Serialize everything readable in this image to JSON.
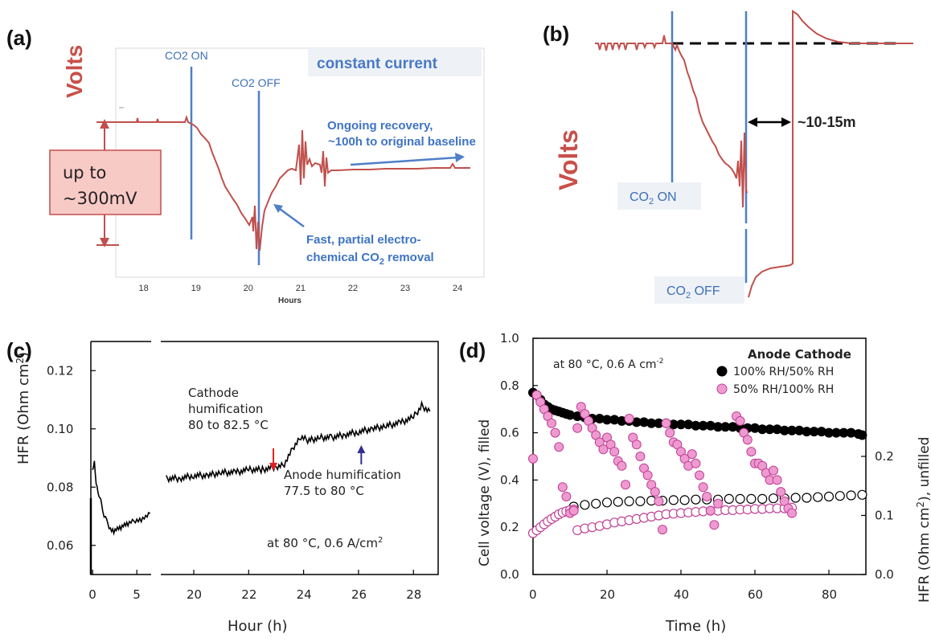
{
  "chart_data": [
    {
      "panel": "(a)",
      "type": "line",
      "annotations": {
        "co2_on": "CO2 ON",
        "co2_off": "CO2 OFF",
        "box_title": "constant current",
        "recovery_note_1": "Ongoing recovery,",
        "recovery_note_2": "~100h to original baseline",
        "removal_note_1": "Fast, partial electro-",
        "removal_note_2": "chemical CO",
        "removal_note_sub": "2",
        "removal_note_3": " removal",
        "drop_1": "up to",
        "drop_2": "~300mV"
      },
      "ylabel": "Volts",
      "xlabel": "Hours",
      "xlim": [
        17.5,
        24.2
      ],
      "x_ticks": [
        "18",
        "19",
        "20",
        "21",
        "22",
        "23",
        "24"
      ],
      "events": {
        "co2_on_hour": 19.3,
        "co2_off_hour": 20.4
      },
      "color": "#c0504d"
    },
    {
      "panel": "(b)",
      "type": "line",
      "ylabel": "Volts",
      "annotations": {
        "co2_on": "CO",
        "co2_on_sub": "2",
        "co2_on_rest": " ON",
        "co2_off": "CO",
        "co2_off_sub": "2",
        "co2_off_rest": " OFF",
        "interval": "~10-15m"
      },
      "color": "#c0504d"
    },
    {
      "panel": "(c)",
      "type": "line",
      "ylabel": "HFR (Ohm cm",
      "ylabel_sup": "2",
      "ylabel_end": ")",
      "xlabel": "Hour (h)",
      "ylim": [
        0.05,
        0.13
      ],
      "y_ticks": [
        "0.06",
        "0.08",
        "0.10",
        "0.12"
      ],
      "x_ticks_left": [
        "0",
        "5"
      ],
      "x_ticks_right": [
        "20",
        "22",
        "24",
        "26",
        "28"
      ],
      "xlim_left": [
        -0.2,
        6.8
      ],
      "xlim_right": [
        18.8,
        28.9
      ],
      "annotations": {
        "cathode_1": "Cathode",
        "cathode_2": "humification",
        "cathode_3": "80 to 82.5 °C",
        "anode_1": "Anode humification",
        "anode_2": "77.5 to 80 °C",
        "conditions": "at 80 °C, 0.6 A/cm",
        "conditions_sup": "2"
      },
      "arrows": {
        "cathode_hour": 22.9,
        "anode_hour": 26.1
      },
      "series": [
        {
          "x": [
            0.0,
            0.2,
            0.4,
            0.6,
            0.8,
            1.0,
            1.3,
            1.6,
            2.0,
            2.4,
            2.8,
            3.2,
            3.6,
            4.0,
            4.5,
            5.0,
            5.5,
            6.0,
            6.5
          ],
          "y": [
            0.085,
            0.089,
            0.082,
            0.078,
            0.077,
            0.074,
            0.07,
            0.068,
            0.066,
            0.065,
            0.066,
            0.066,
            0.067,
            0.067,
            0.068,
            0.069,
            0.069,
            0.07,
            0.071
          ]
        },
        {
          "x": [
            19.0,
            19.5,
            20.0,
            20.5,
            21.0,
            21.5,
            22.0,
            22.5,
            23.0,
            23.3,
            23.6,
            23.9,
            24.2,
            24.6,
            25.0,
            25.5,
            26.0,
            26.5,
            27.0,
            27.5,
            28.0,
            28.3,
            28.6
          ],
          "y": [
            0.083,
            0.083,
            0.084,
            0.084,
            0.085,
            0.085,
            0.086,
            0.086,
            0.087,
            0.088,
            0.093,
            0.097,
            0.096,
            0.097,
            0.097,
            0.098,
            0.099,
            0.1,
            0.101,
            0.102,
            0.104,
            0.108,
            0.106
          ]
        }
      ]
    },
    {
      "panel": "(d)",
      "type": "scatter",
      "ylabel": "Cell voltage (V), filled",
      "xlabel": "Time (h)",
      "y2label": "HFR (Ohm cm",
      "y2label_sup": "2",
      "y2label_end": "), unfilled",
      "xlim": [
        0,
        90
      ],
      "ylim": [
        0,
        1.0
      ],
      "y2lim": [
        0,
        0.4
      ],
      "x_ticks": [
        "0",
        "20",
        "40",
        "60",
        "80"
      ],
      "y_ticks": [
        "0.0",
        "0.2",
        "0.4",
        "0.6",
        "0.8",
        "1.0"
      ],
      "y2_ticks": [
        "0.0",
        "0.1",
        "0.2"
      ],
      "annotations": {
        "conditions": "at 80 °C, 0.6 A cm",
        "conditions_sup": "-2"
      },
      "legend_title": "Anode  Cathode",
      "legend_placement": "top-right",
      "series": [
        {
          "name": "100% RH/50% RH",
          "color": "#000000",
          "voltage_x": [
            0,
            1,
            2,
            3,
            4,
            5,
            6,
            7,
            8,
            9,
            10,
            12,
            14,
            16,
            18,
            20,
            22,
            24,
            26,
            28,
            30,
            32,
            34,
            36,
            38,
            40,
            42,
            44,
            46,
            48,
            50,
            52,
            54,
            56,
            58,
            60,
            62,
            64,
            66,
            68,
            70,
            72,
            74,
            76,
            78,
            80,
            82,
            84,
            86,
            88,
            89
          ],
          "voltage_y": [
            0.77,
            0.76,
            0.74,
            0.72,
            0.71,
            0.7,
            0.695,
            0.69,
            0.685,
            0.68,
            0.675,
            0.67,
            0.665,
            0.66,
            0.66,
            0.655,
            0.655,
            0.65,
            0.65,
            0.645,
            0.645,
            0.64,
            0.64,
            0.64,
            0.635,
            0.635,
            0.635,
            0.63,
            0.63,
            0.63,
            0.625,
            0.625,
            0.625,
            0.62,
            0.62,
            0.62,
            0.615,
            0.615,
            0.615,
            0.61,
            0.61,
            0.61,
            0.605,
            0.605,
            0.605,
            0.6,
            0.6,
            0.6,
            0.6,
            0.595,
            0.59
          ],
          "hfr_x": [
            11,
            14,
            17,
            20,
            23,
            26,
            29,
            32,
            35,
            38,
            41,
            44,
            47,
            50,
            53,
            56,
            59,
            62,
            65,
            68,
            71,
            74,
            77,
            80,
            83,
            86,
            89
          ],
          "hfr_y": [
            0.115,
            0.118,
            0.12,
            0.122,
            0.123,
            0.124,
            0.124,
            0.125,
            0.125,
            0.126,
            0.126,
            0.127,
            0.127,
            0.127,
            0.128,
            0.128,
            0.128,
            0.128,
            0.129,
            0.129,
            0.13,
            0.13,
            0.131,
            0.132,
            0.133,
            0.134,
            0.135
          ]
        },
        {
          "name": "50% RH/100% RH",
          "color": "#d9509a",
          "voltage_x": [
            0,
            1,
            2,
            3,
            4,
            5,
            6,
            7,
            8,
            9,
            10,
            11,
            12,
            13,
            14,
            15,
            16,
            17,
            18,
            19,
            20,
            21,
            22,
            23,
            24,
            25,
            26,
            27,
            28,
            29,
            30,
            31,
            32,
            33,
            34,
            35,
            36,
            37,
            38,
            39,
            40,
            41,
            42,
            43,
            44,
            45,
            46,
            47,
            48,
            49,
            50,
            55,
            56,
            57,
            58,
            59,
            60,
            61,
            62,
            63,
            64,
            65,
            66,
            67,
            68,
            69,
            70
          ],
          "voltage_y": [
            0.49,
            0.76,
            0.73,
            0.7,
            0.67,
            0.64,
            0.6,
            0.54,
            0.37,
            0.33,
            0.26,
            0.27,
            0.62,
            0.71,
            0.68,
            0.65,
            0.62,
            0.59,
            0.56,
            0.53,
            0.58,
            0.55,
            0.52,
            0.48,
            0.46,
            0.38,
            0.66,
            0.58,
            0.55,
            0.5,
            0.45,
            0.42,
            0.38,
            0.35,
            0.31,
            0.19,
            0.64,
            0.6,
            0.56,
            0.55,
            0.52,
            0.49,
            0.46,
            0.51,
            0.47,
            0.42,
            0.37,
            0.33,
            0.27,
            0.21,
            0.3,
            0.67,
            0.65,
            0.6,
            0.57,
            0.52,
            0.47,
            0.47,
            0.46,
            0.43,
            0.4,
            0.44,
            0.4,
            0.35,
            0.31,
            0.28,
            0.26
          ],
          "hfr_x": [
            0,
            1,
            2,
            3,
            4,
            5,
            6,
            7,
            8,
            9,
            10,
            11,
            12,
            14,
            16,
            18,
            20,
            22,
            24,
            26,
            28,
            30,
            32,
            34,
            36,
            38,
            40,
            42,
            44,
            46,
            48,
            50,
            52,
            54,
            56,
            58,
            60,
            62,
            64,
            66,
            68,
            70
          ],
          "hfr_y": [
            0.07,
            0.075,
            0.08,
            0.085,
            0.09,
            0.094,
            0.098,
            0.102,
            0.105,
            0.107,
            0.109,
            0.11,
            0.075,
            0.078,
            0.08,
            0.082,
            0.085,
            0.088,
            0.09,
            0.092,
            0.094,
            0.096,
            0.098,
            0.1,
            0.102,
            0.103,
            0.104,
            0.105,
            0.106,
            0.107,
            0.108,
            0.108,
            0.109,
            0.109,
            0.11,
            0.11,
            0.111,
            0.111,
            0.112,
            0.112,
            0.112,
            0.113
          ]
        }
      ]
    }
  ]
}
